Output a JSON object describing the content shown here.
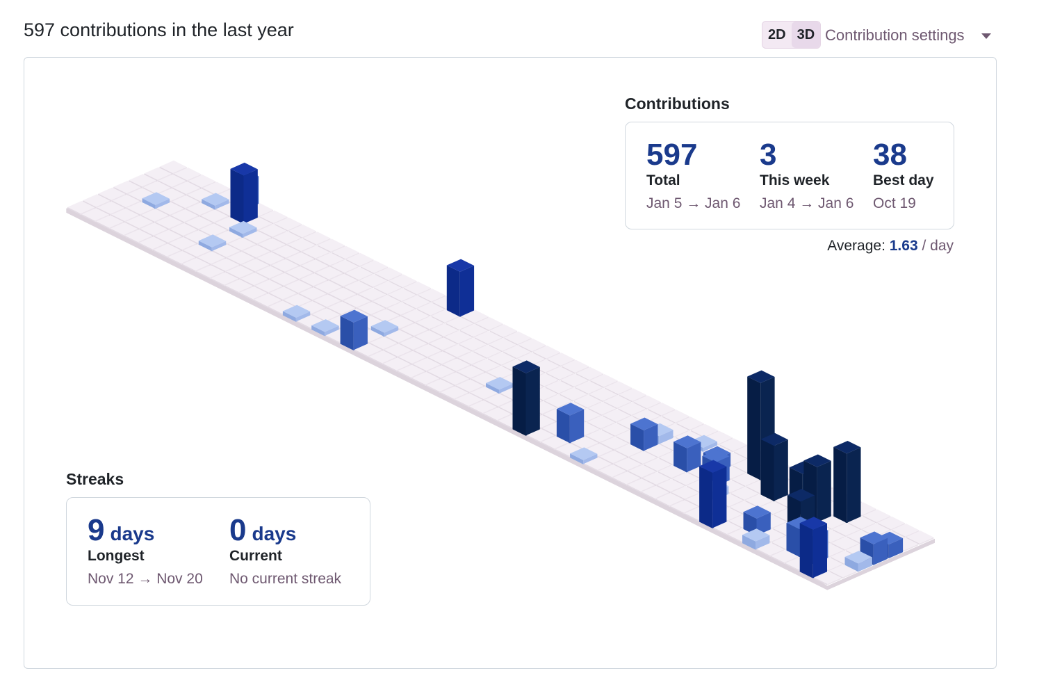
{
  "header": {
    "title": "597 contributions in the last year",
    "toggle": [
      "2D",
      "3D"
    ],
    "settings": "Contribution settings"
  },
  "contributions": {
    "heading": "Contributions",
    "stats": [
      {
        "value": 597,
        "label": "Total",
        "range": "Jan 5 → Jan 6"
      },
      {
        "value": 3,
        "label": "This week",
        "range": "Jan 4 → Jan 6"
      },
      {
        "value": 38,
        "label": "Best day",
        "range": "Oct 19"
      }
    ],
    "average": {
      "label": "Average:",
      "value": 1.63,
      "unit": "/ day"
    }
  },
  "streaks": {
    "heading": "Streaks",
    "items": [
      {
        "value": 9,
        "unit": "days",
        "label": "Longest",
        "range": "Nov 12 → Nov 20"
      },
      {
        "value": 0,
        "unit": "days",
        "label": "Current",
        "range": "No current streak"
      }
    ]
  }
}
